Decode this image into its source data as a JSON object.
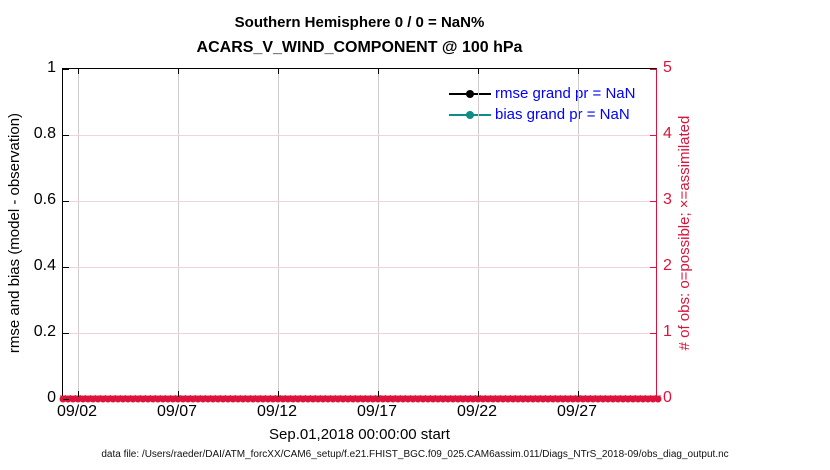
{
  "titles": {
    "line1": "Southern Hemisphere 0 / 0 = NaN%",
    "line2": "ACARS_V_WIND_COMPONENT @ 100 hPa"
  },
  "left_axis": {
    "label": "rmse and bias (model - observation)",
    "ticks": [
      "1",
      "0.8",
      "0.6",
      "0.4",
      "0.2",
      "0"
    ]
  },
  "right_axis": {
    "label": "# of obs: o=possible; ×=assimilated",
    "ticks": [
      "5",
      "4",
      "3",
      "2",
      "1",
      "0"
    ],
    "color": "#DC143C"
  },
  "x_axis": {
    "label": "Sep.01,2018 00:00:00 start",
    "ticks": [
      "09/02",
      "09/07",
      "09/12",
      "09/17",
      "09/22",
      "09/27"
    ]
  },
  "legend": [
    {
      "label": "rmse grand pr = NaN",
      "color": "#000000"
    },
    {
      "label": "bias grand pr = NaN",
      "color": "#0E8C86"
    }
  ],
  "markers": {
    "possible_glyph": "●",
    "assimilated_glyph": "×",
    "color": "#DC143C"
  },
  "footer": {
    "data_file": "data file: /Users/raeder/DAI/ATM_forcXX/CAM6_setup/f.e21.FHIST_BGC.f09_025.CAM6assim.011/Diags_NTrS_2018-09/obs_diag_output.nc"
  },
  "chart_data": {
    "type": "line",
    "title": "Southern Hemisphere 0 / 0 = NaN%",
    "subtitle": "ACARS_V_WIND_COMPONENT @ 100 hPa",
    "xlabel": "Sep.01,2018 00:00:00 start",
    "x_tick_labels": [
      "09/02",
      "09/07",
      "09/12",
      "09/17",
      "09/22",
      "09/27"
    ],
    "left_y": {
      "label": "rmse and bias (model - observation)",
      "range": [
        0,
        1
      ],
      "ticks": [
        0,
        0.2,
        0.4,
        0.6,
        0.8,
        1
      ]
    },
    "right_y": {
      "label": "# of obs: o=possible; ×=assimilated",
      "range": [
        0,
        5
      ],
      "ticks": [
        0,
        1,
        2,
        3,
        4,
        5
      ]
    },
    "grid": true,
    "legend_position": "upper right",
    "series": [
      {
        "name": "rmse grand pr = NaN",
        "axis": "left",
        "color": "#000000",
        "values": "NaN",
        "plotted": false
      },
      {
        "name": "bias grand pr = NaN",
        "axis": "left",
        "color": "#0E8C86",
        "values": "NaN",
        "plotted": false
      },
      {
        "name": "possible obs (o)",
        "axis": "right",
        "color": "#DC143C",
        "marker": "o",
        "constant_value": 0,
        "n_points": 120
      },
      {
        "name": "assimilated obs (×)",
        "axis": "right",
        "color": "#DC143C",
        "marker": "×",
        "constant_value": 0,
        "n_points": 120
      }
    ]
  }
}
